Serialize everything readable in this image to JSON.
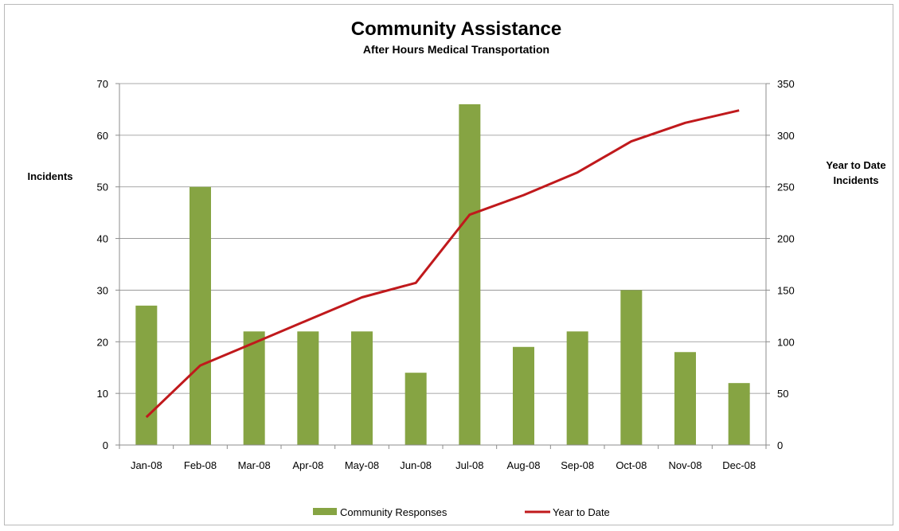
{
  "chart_data": {
    "type": "bar",
    "title": "Community Assistance",
    "subtitle": "After Hours Medical Transportation",
    "ylabel": "Incidents",
    "y2label_lines": [
      "Year to Date",
      "Incidents"
    ],
    "ylim": [
      0,
      70
    ],
    "y2lim": [
      0,
      350
    ],
    "yticks": [
      0,
      10,
      20,
      30,
      40,
      50,
      60,
      70
    ],
    "y2ticks": [
      0,
      50,
      100,
      150,
      200,
      250,
      300,
      350
    ],
    "categories": [
      "Jan-08",
      "Feb-08",
      "Mar-08",
      "Apr-08",
      "May-08",
      "Jun-08",
      "Jul-08",
      "Aug-08",
      "Sep-08",
      "Oct-08",
      "Nov-08",
      "Dec-08"
    ],
    "series": [
      {
        "name": "Community Responses",
        "type": "bar",
        "axis": "left",
        "color": "#86a443",
        "values": [
          27,
          50,
          22,
          22,
          22,
          14,
          66,
          19,
          22,
          30,
          18,
          12
        ]
      },
      {
        "name": "Year to Date",
        "type": "line",
        "axis": "right",
        "color": "#c0191c",
        "values": [
          27,
          77,
          99,
          121,
          143,
          157,
          223,
          242,
          264,
          294,
          312,
          324
        ]
      }
    ],
    "grid": true,
    "legend_position": "bottom"
  }
}
